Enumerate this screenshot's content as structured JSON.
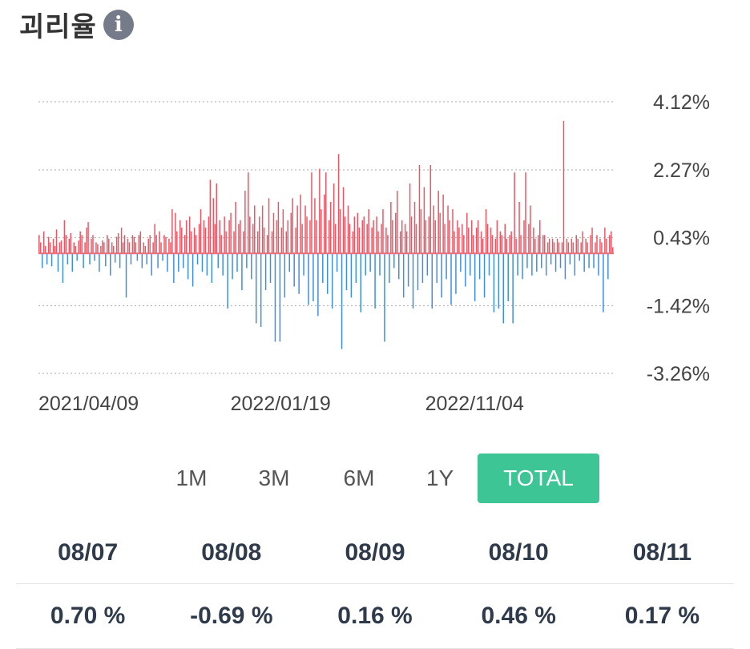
{
  "header": {
    "title": "괴리율",
    "info_icon": "info-icon"
  },
  "colors": {
    "positive": "#ee5563",
    "negative": "#3a8ee6",
    "grid": "#bbbbbb",
    "active": "#3ec595"
  },
  "periods": [
    {
      "label": "1M",
      "active": false
    },
    {
      "label": "3M",
      "active": false
    },
    {
      "label": "6M",
      "active": false
    },
    {
      "label": "1Y",
      "active": false
    },
    {
      "label": "TOTAL",
      "active": true
    }
  ],
  "recent": {
    "dates": [
      "08/07",
      "08/08",
      "08/09",
      "08/10",
      "08/11"
    ],
    "values": [
      "0.70 %",
      "-0.69 %",
      "0.16 %",
      "0.46 %",
      "0.17 %"
    ]
  },
  "chart_data": {
    "type": "bar",
    "y_ticks": [
      "4.12%",
      "2.27%",
      "0.43%",
      "-1.42%",
      "-3.26%"
    ],
    "ylim": [
      -3.26,
      4.12
    ],
    "x_tick_labels": [
      "2021/04/09",
      "2022/01/19",
      "2022/11/04"
    ],
    "x_start": "2021-04-09",
    "x_end": "2023-08-11",
    "grid": "horizontal dotted",
    "values": [
      0.5,
      0.3,
      -0.4,
      0.6,
      0.2,
      -0.3,
      0.45,
      0.3,
      -0.35,
      0.4,
      0.2,
      0.65,
      -0.5,
      0.3,
      0.35,
      -0.8,
      0.9,
      0.5,
      -0.3,
      0.4,
      0.55,
      -0.5,
      0.3,
      0.2,
      -0.2,
      0.35,
      0.6,
      0.5,
      -0.4,
      0.3,
      0.7,
      0.85,
      -0.3,
      0.4,
      0.5,
      -0.2,
      0.3,
      0.25,
      -0.5,
      0.2,
      0.35,
      0.3,
      -0.35,
      0.5,
      0.4,
      -0.6,
      0.3,
      0.2,
      -0.25,
      0.45,
      0.55,
      -0.4,
      0.7,
      0.3,
      0.5,
      -1.2,
      0.4,
      0.3,
      -0.3,
      0.5,
      0.45,
      0.3,
      -0.2,
      0.5,
      0.6,
      -0.4,
      0.3,
      0.2,
      -0.3,
      0.4,
      0.5,
      -0.6,
      0.3,
      0.8,
      0.5,
      -0.4,
      0.6,
      0.3,
      -0.2,
      0.5,
      0.45,
      -0.5,
      0.4,
      0.3,
      1.2,
      -0.8,
      1.1,
      0.6,
      -0.5,
      0.9,
      0.7,
      -0.4,
      0.5,
      0.9,
      -0.7,
      1.0,
      0.6,
      -0.9,
      0.7,
      0.5,
      -0.3,
      0.8,
      1.2,
      -0.5,
      0.9,
      0.7,
      -0.6,
      1.0,
      2.0,
      -0.8,
      1.5,
      0.8,
      1.9,
      -0.4,
      0.9,
      0.5,
      -0.6,
      1.0,
      0.6,
      -1.5,
      0.9,
      1.1,
      -0.7,
      0.6,
      1.4,
      -0.5,
      0.8,
      0.9,
      -1.0,
      0.6,
      1.7,
      -0.4,
      2.2,
      1.0,
      -0.7,
      0.8,
      1.3,
      -1.9,
      0.6,
      1.0,
      -2.0,
      1.3,
      0.7,
      -1.0,
      0.5,
      1.5,
      -0.8,
      0.6,
      1.1,
      -2.4,
      0.9,
      1.4,
      -2.4,
      0.7,
      1.2,
      -1.2,
      0.6,
      0.9,
      -0.5,
      1.1,
      1.5,
      -0.9,
      0.7,
      1.3,
      -1.1,
      1.6,
      0.8,
      -0.6,
      1.3,
      1.0,
      -1.4,
      0.9,
      2.2,
      -1.3,
      1.5,
      0.9,
      -1.7,
      2.3,
      1.2,
      -0.8,
      1.6,
      2.2,
      -1.1,
      0.9,
      1.4,
      -1.5,
      1.9,
      0.8,
      -0.5,
      2.7,
      1.2,
      -2.6,
      1.8,
      1.0,
      -1.0,
      1.3,
      0.8,
      -1.2,
      0.6,
      1.0,
      -0.8,
      1.1,
      0.7,
      -1.6,
      0.9,
      1.0,
      -0.6,
      0.8,
      1.2,
      -0.5,
      0.7,
      0.9,
      -1.5,
      1.0,
      0.6,
      -0.6,
      0.8,
      1.2,
      -2.4,
      0.7,
      0.5,
      -0.8,
      1.4,
      0.9,
      -0.4,
      1.1,
      1.7,
      -0.7,
      0.6,
      0.9,
      -1.2,
      0.8,
      0.6,
      -0.9,
      1.9,
      1.0,
      -1.5,
      1.4,
      0.8,
      -1.0,
      2.4,
      1.2,
      -0.8,
      1.8,
      0.9,
      -0.6,
      1.0,
      2.4,
      -1.5,
      1.3,
      0.9,
      -0.8,
      1.7,
      1.1,
      -1.2,
      1.6,
      0.8,
      -0.7,
      1.3,
      0.9,
      -1.4,
      1.2,
      0.6,
      -1.1,
      0.9,
      0.7,
      -0.5,
      0.8,
      0.5,
      -0.9,
      1.1,
      0.7,
      -0.6,
      0.9,
      0.5,
      -1.3,
      0.7,
      0.9,
      -0.7,
      0.6,
      0.4,
      -1.2,
      1.2,
      0.8,
      -0.6,
      0.7,
      0.5,
      -1.6,
      0.4,
      0.9,
      -1.5,
      0.6,
      0.5,
      -1.9,
      0.8,
      0.4,
      -1.3,
      0.5,
      0.6,
      -1.9,
      2.2,
      0.4,
      -0.6,
      1.4,
      0.5,
      -0.7,
      0.9,
      2.2,
      -0.4,
      0.8,
      1.3,
      -0.6,
      0.7,
      0.4,
      -0.5,
      0.5,
      0.9,
      -0.4,
      0.5,
      0.5,
      -0.6,
      0.3,
      0.4,
      -0.3,
      0.4,
      0.3,
      -0.5,
      0.4,
      0.3,
      -0.4,
      0.3,
      3.6,
      -0.7,
      0.4,
      0.3,
      -0.3,
      0.4,
      0.3,
      -0.6,
      0.5,
      0.4,
      -0.2,
      0.3,
      0.6,
      -0.5,
      0.4,
      0.3,
      -0.4,
      0.5,
      0.7,
      -0.4,
      0.3,
      0.5,
      -0.6,
      0.4,
      0.3,
      -1.6,
      0.7,
      0.4,
      -0.7,
      0.5,
      0.6,
      0.17
    ]
  }
}
